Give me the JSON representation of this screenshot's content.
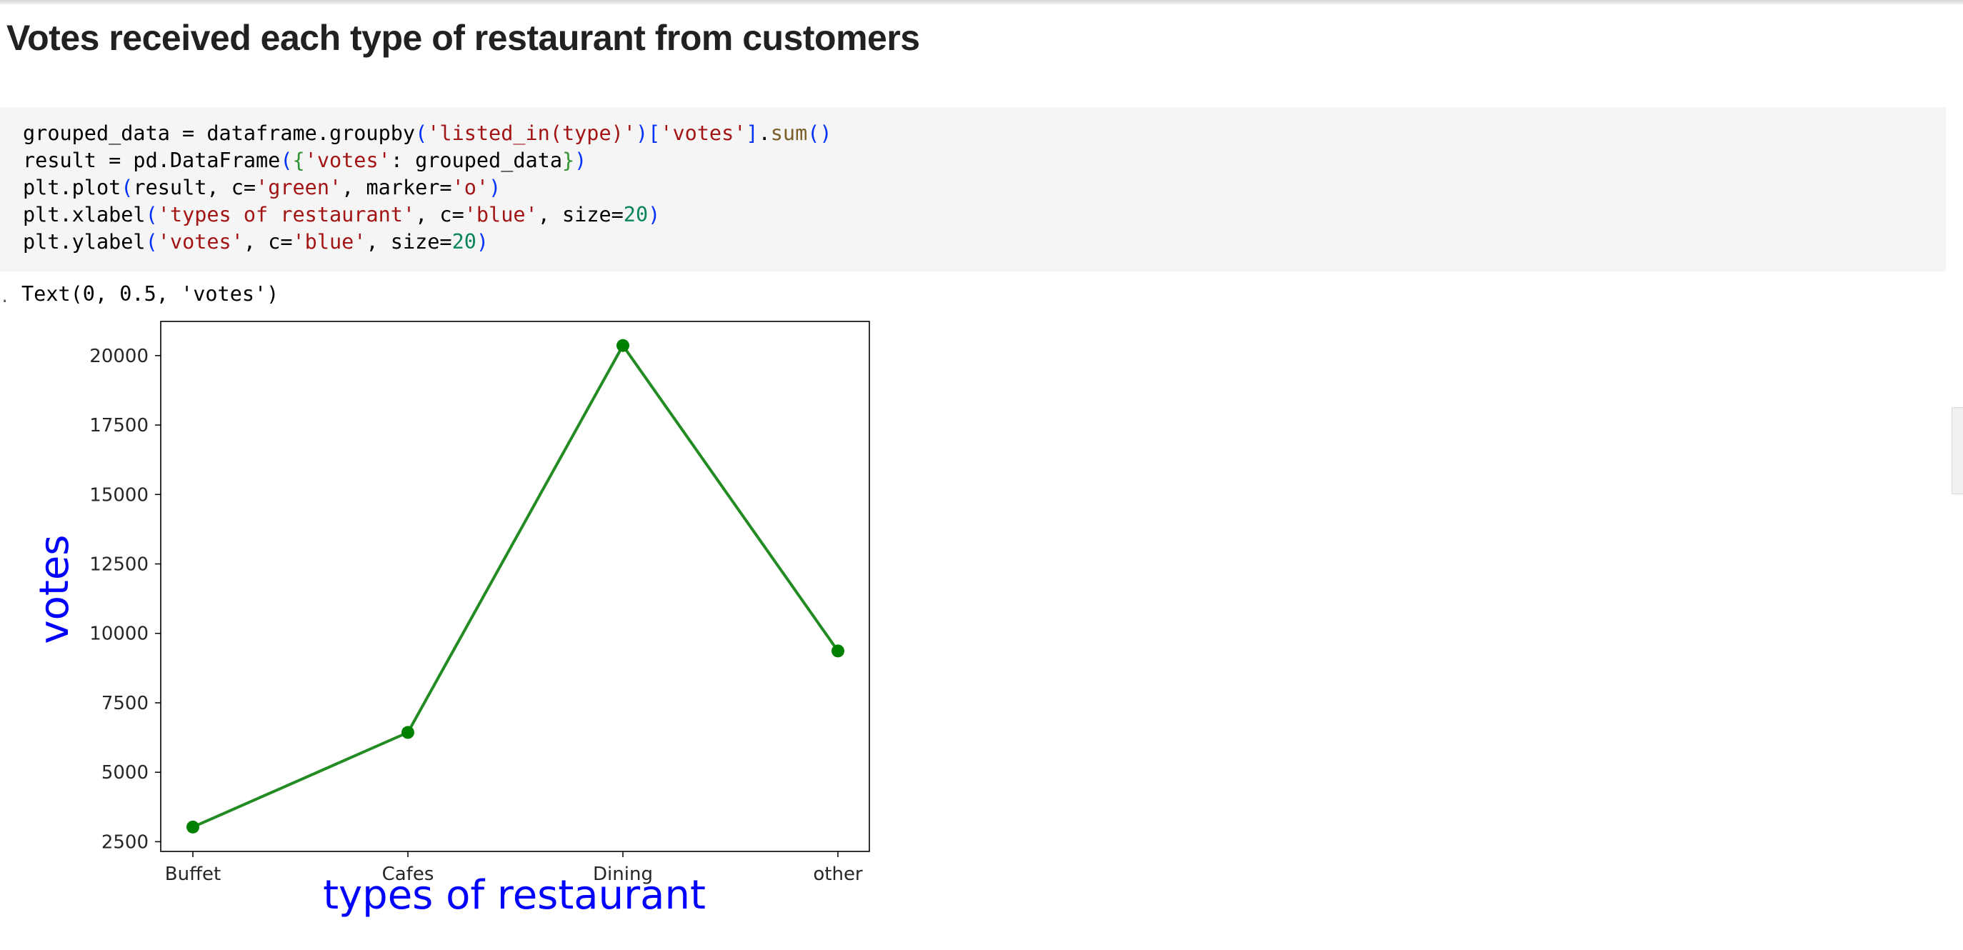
{
  "heading": "Votes received each type of restaurant from customers",
  "code": {
    "lines": [
      [
        {
          "t": "grouped_data = dataframe.groupby",
          "c": ""
        },
        {
          "t": "(",
          "c": "br"
        },
        {
          "t": "'listed_in(type)'",
          "c": "str"
        },
        {
          "t": ")",
          "c": "br"
        },
        {
          "t": "[",
          "c": "br"
        },
        {
          "t": "'votes'",
          "c": "str"
        },
        {
          "t": "]",
          "c": "br"
        },
        {
          "t": ".",
          "c": ""
        },
        {
          "t": "sum",
          "c": "fn"
        },
        {
          "t": "()",
          "c": "br"
        }
      ],
      [
        {
          "t": "result = pd.DataFrame",
          "c": ""
        },
        {
          "t": "(",
          "c": "br"
        },
        {
          "t": "{",
          "c": "brg"
        },
        {
          "t": "'votes'",
          "c": "str"
        },
        {
          "t": ": grouped_data",
          "c": ""
        },
        {
          "t": "}",
          "c": "brg"
        },
        {
          "t": ")",
          "c": "br"
        }
      ],
      [
        {
          "t": "plt.plot",
          "c": ""
        },
        {
          "t": "(",
          "c": "br"
        },
        {
          "t": "result, c=",
          "c": ""
        },
        {
          "t": "'green'",
          "c": "str"
        },
        {
          "t": ", marker=",
          "c": ""
        },
        {
          "t": "'o'",
          "c": "str"
        },
        {
          "t": ")",
          "c": "br"
        }
      ],
      [
        {
          "t": "plt.xlabel",
          "c": ""
        },
        {
          "t": "(",
          "c": "br"
        },
        {
          "t": "'types of restaurant'",
          "c": "str"
        },
        {
          "t": ", c=",
          "c": ""
        },
        {
          "t": "'blue'",
          "c": "str"
        },
        {
          "t": ", size=",
          "c": ""
        },
        {
          "t": "20",
          "c": "num"
        },
        {
          "t": ")",
          "c": "br"
        }
      ],
      [
        {
          "t": "plt.ylabel",
          "c": ""
        },
        {
          "t": "(",
          "c": "br"
        },
        {
          "t": "'votes'",
          "c": "str"
        },
        {
          "t": ", c=",
          "c": ""
        },
        {
          "t": "'blue'",
          "c": "str"
        },
        {
          "t": ", size=",
          "c": ""
        },
        {
          "t": "20",
          "c": "num"
        },
        {
          "t": ")",
          "c": "br"
        }
      ]
    ]
  },
  "output": {
    "marker": "·",
    "text": "Text(0, 0.5, 'votes')"
  },
  "chart_data": {
    "type": "line",
    "categories": [
      "Buffet",
      "Cafes",
      "Dining",
      "other"
    ],
    "series": [
      {
        "values": [
          3028,
          6434,
          20363,
          9367
        ],
        "color": "#228b22",
        "marker": "o"
      }
    ],
    "xlabel": "types of restaurant",
    "ylabel": "votes",
    "label_color": "#0000ff",
    "yticks": [
      2500,
      5000,
      7500,
      10000,
      12500,
      15000,
      17500,
      20000
    ],
    "ylim": [
      2150,
      21230
    ],
    "grid": false
  }
}
